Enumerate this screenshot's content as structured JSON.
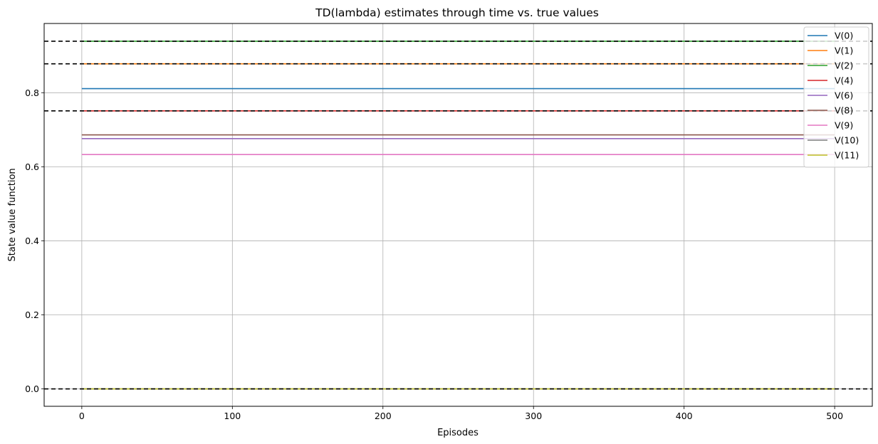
{
  "chart_data": {
    "type": "line",
    "title": "TD(lambda) estimates through time vs. true values",
    "xlabel": "Episodes",
    "ylabel": "State value function",
    "xlim": [
      -25,
      525
    ],
    "ylim": [
      -0.047,
      0.987
    ],
    "xticks": [
      0,
      100,
      200,
      300,
      400,
      500
    ],
    "yticks": [
      0.0,
      0.2,
      0.4,
      0.6,
      0.8
    ],
    "ytick_labels": [
      "0.0",
      "0.2",
      "0.4",
      "0.6",
      "0.8"
    ],
    "grid": true,
    "legend_position": "top-right",
    "x": [
      0,
      500
    ],
    "series": [
      {
        "name": "V(0)",
        "color": "#1f77b4",
        "values": [
          0.811,
          0.811
        ]
      },
      {
        "name": "V(1)",
        "color": "#ff7f0e",
        "values": [
          0.878,
          0.878
        ]
      },
      {
        "name": "V(2)",
        "color": "#2ca02c",
        "values": [
          0.939,
          0.939
        ]
      },
      {
        "name": "V(4)",
        "color": "#d62728",
        "values": [
          0.751,
          0.751
        ]
      },
      {
        "name": "V(6)",
        "color": "#9467bd",
        "values": [
          0.676,
          0.676
        ]
      },
      {
        "name": "V(8)",
        "color": "#8c564b",
        "values": [
          0.686,
          0.686
        ]
      },
      {
        "name": "V(9)",
        "color": "#e377c2",
        "values": [
          0.633,
          0.633
        ]
      },
      {
        "name": "V(10)",
        "color": "#7f7f7f",
        "values": [
          0.0,
          0.0
        ]
      },
      {
        "name": "V(11)",
        "color": "#bcbd22",
        "values": [
          0.0,
          0.0
        ]
      }
    ],
    "true_values": [
      0.939,
      0.878,
      0.751,
      0.0
    ],
    "true_value_color": "#000000"
  }
}
